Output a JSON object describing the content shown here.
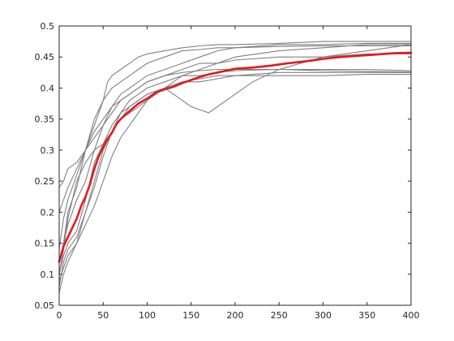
{
  "chart_data": {
    "type": "line",
    "title": "",
    "xlabel": "",
    "ylabel": "",
    "xlim": [
      0,
      400
    ],
    "ylim": [
      0.05,
      0.5
    ],
    "x_ticks": [
      0,
      50,
      100,
      150,
      200,
      250,
      300,
      350,
      400
    ],
    "y_ticks": [
      0.05,
      0.1,
      0.15,
      0.2,
      0.25,
      0.3,
      0.35,
      0.4,
      0.45,
      0.5
    ],
    "x_tick_labels": [
      "0",
      "50",
      "100",
      "150",
      "200",
      "250",
      "300",
      "350",
      "400"
    ],
    "y_tick_labels": [
      "0.05",
      "0.1",
      "0.15",
      "0.2",
      "0.25",
      "0.3",
      "0.35",
      "0.4",
      "0.45",
      "0.5"
    ],
    "grid": false,
    "legend": "none",
    "colors": {
      "individual": "#808080",
      "mean": "#e31a1c",
      "axis": "#262626",
      "background": "#ffffff"
    },
    "mean_series": {
      "x": [
        0,
        5,
        10,
        15,
        20,
        25,
        30,
        35,
        40,
        45,
        50,
        55,
        60,
        65,
        70,
        80,
        90,
        100,
        110,
        120,
        130,
        140,
        150,
        160,
        170,
        180,
        190,
        200,
        220,
        240,
        260,
        280,
        300,
        320,
        340,
        360,
        380,
        400
      ],
      "values": [
        0.12,
        0.145,
        0.16,
        0.175,
        0.19,
        0.21,
        0.225,
        0.245,
        0.27,
        0.29,
        0.305,
        0.318,
        0.328,
        0.342,
        0.35,
        0.363,
        0.375,
        0.383,
        0.393,
        0.398,
        0.402,
        0.408,
        0.413,
        0.418,
        0.422,
        0.425,
        0.428,
        0.431,
        0.433,
        0.436,
        0.44,
        0.443,
        0.447,
        0.45,
        0.452,
        0.454,
        0.456,
        0.457
      ]
    },
    "series": [
      {
        "x": [
          0,
          5,
          10,
          20,
          30,
          40,
          50,
          60,
          70,
          80,
          90,
          100,
          120,
          140,
          160,
          180,
          200,
          250,
          300,
          350,
          400
        ],
        "values": [
          0.1,
          0.13,
          0.15,
          0.17,
          0.22,
          0.28,
          0.31,
          0.34,
          0.36,
          0.37,
          0.38,
          0.39,
          0.4,
          0.41,
          0.415,
          0.42,
          0.42,
          0.425,
          0.425,
          0.425,
          0.425
        ]
      },
      {
        "x": [
          0,
          5,
          10,
          20,
          30,
          40,
          50,
          60,
          70,
          80,
          90,
          100,
          120,
          140,
          160,
          180,
          200,
          250,
          300,
          350,
          400
        ],
        "values": [
          0.08,
          0.12,
          0.14,
          0.16,
          0.2,
          0.24,
          0.29,
          0.33,
          0.36,
          0.38,
          0.39,
          0.4,
          0.41,
          0.42,
          0.42,
          0.425,
          0.428,
          0.43,
          0.43,
          0.43,
          0.428
        ]
      },
      {
        "x": [
          0,
          5,
          10,
          20,
          30,
          40,
          50,
          60,
          70,
          80,
          90,
          100,
          120,
          140,
          160,
          180,
          200,
          250,
          300,
          350,
          400
        ],
        "values": [
          0.12,
          0.15,
          0.18,
          0.22,
          0.25,
          0.3,
          0.34,
          0.36,
          0.38,
          0.39,
          0.4,
          0.41,
          0.42,
          0.425,
          0.428,
          0.43,
          0.43,
          0.43,
          0.428,
          0.427,
          0.426
        ]
      },
      {
        "x": [
          0,
          5,
          10,
          20,
          30,
          40,
          50,
          60,
          70,
          80,
          90,
          100,
          110,
          120,
          130,
          140,
          150,
          170,
          190,
          200,
          220,
          250,
          300,
          350,
          400
        ],
        "values": [
          0.1,
          0.14,
          0.19,
          0.25,
          0.28,
          0.3,
          0.31,
          0.33,
          0.35,
          0.36,
          0.37,
          0.38,
          0.39,
          0.4,
          0.39,
          0.38,
          0.37,
          0.36,
          0.38,
          0.39,
          0.41,
          0.43,
          0.45,
          0.46,
          0.47
        ]
      },
      {
        "x": [
          0,
          5,
          10,
          20,
          30,
          40,
          50,
          60,
          70,
          80,
          90,
          100,
          120,
          140,
          160,
          180,
          200,
          250,
          300,
          350,
          400
        ],
        "values": [
          0.14,
          0.19,
          0.22,
          0.26,
          0.3,
          0.33,
          0.35,
          0.37,
          0.38,
          0.39,
          0.4,
          0.41,
          0.42,
          0.43,
          0.44,
          0.44,
          0.445,
          0.45,
          0.45,
          0.455,
          0.455
        ]
      },
      {
        "x": [
          0,
          5,
          10,
          20,
          30,
          40,
          50,
          60,
          70,
          80,
          90,
          100,
          120,
          140,
          160,
          180,
          200,
          250,
          300,
          350,
          400
        ],
        "values": [
          0.24,
          0.25,
          0.27,
          0.28,
          0.3,
          0.32,
          0.34,
          0.37,
          0.39,
          0.4,
          0.41,
          0.42,
          0.43,
          0.44,
          0.45,
          0.46,
          0.465,
          0.47,
          0.47,
          0.472,
          0.472
        ]
      },
      {
        "x": [
          0,
          5,
          10,
          20,
          30,
          40,
          50,
          55,
          60,
          70,
          80,
          90,
          100,
          120,
          140,
          160,
          180,
          200,
          250,
          300,
          350,
          400
        ],
        "values": [
          0.12,
          0.15,
          0.2,
          0.24,
          0.3,
          0.34,
          0.38,
          0.41,
          0.42,
          0.43,
          0.44,
          0.45,
          0.455,
          0.46,
          0.465,
          0.468,
          0.47,
          0.47,
          0.472,
          0.475,
          0.475,
          0.475
        ]
      },
      {
        "x": [
          0,
          5,
          10,
          20,
          30,
          40,
          50,
          60,
          70,
          80,
          90,
          100,
          120,
          140,
          160,
          180,
          200,
          250,
          300,
          350,
          400
        ],
        "values": [
          0.09,
          0.11,
          0.13,
          0.15,
          0.18,
          0.21,
          0.25,
          0.29,
          0.32,
          0.34,
          0.36,
          0.38,
          0.4,
          0.42,
          0.43,
          0.44,
          0.45,
          0.46,
          0.465,
          0.47,
          0.47
        ]
      },
      {
        "x": [
          0,
          5,
          10,
          20,
          30,
          40,
          50,
          60,
          70,
          80,
          90,
          100,
          120,
          140,
          160,
          180,
          200,
          250,
          300,
          350,
          400
        ],
        "values": [
          0.07,
          0.1,
          0.12,
          0.15,
          0.2,
          0.25,
          0.3,
          0.33,
          0.35,
          0.37,
          0.38,
          0.39,
          0.4,
          0.41,
          0.41,
          0.415,
          0.42,
          0.42,
          0.42,
          0.422,
          0.422
        ]
      },
      {
        "x": [
          0,
          5,
          10,
          20,
          30,
          40,
          50,
          60,
          70,
          80,
          90,
          100,
          120,
          140,
          160,
          180,
          200,
          250,
          300,
          350,
          400
        ],
        "values": [
          0.2,
          0.22,
          0.24,
          0.27,
          0.3,
          0.35,
          0.38,
          0.4,
          0.41,
          0.42,
          0.43,
          0.44,
          0.45,
          0.46,
          0.462,
          0.465,
          0.465,
          0.467,
          0.468,
          0.468,
          0.468
        ]
      }
    ]
  }
}
